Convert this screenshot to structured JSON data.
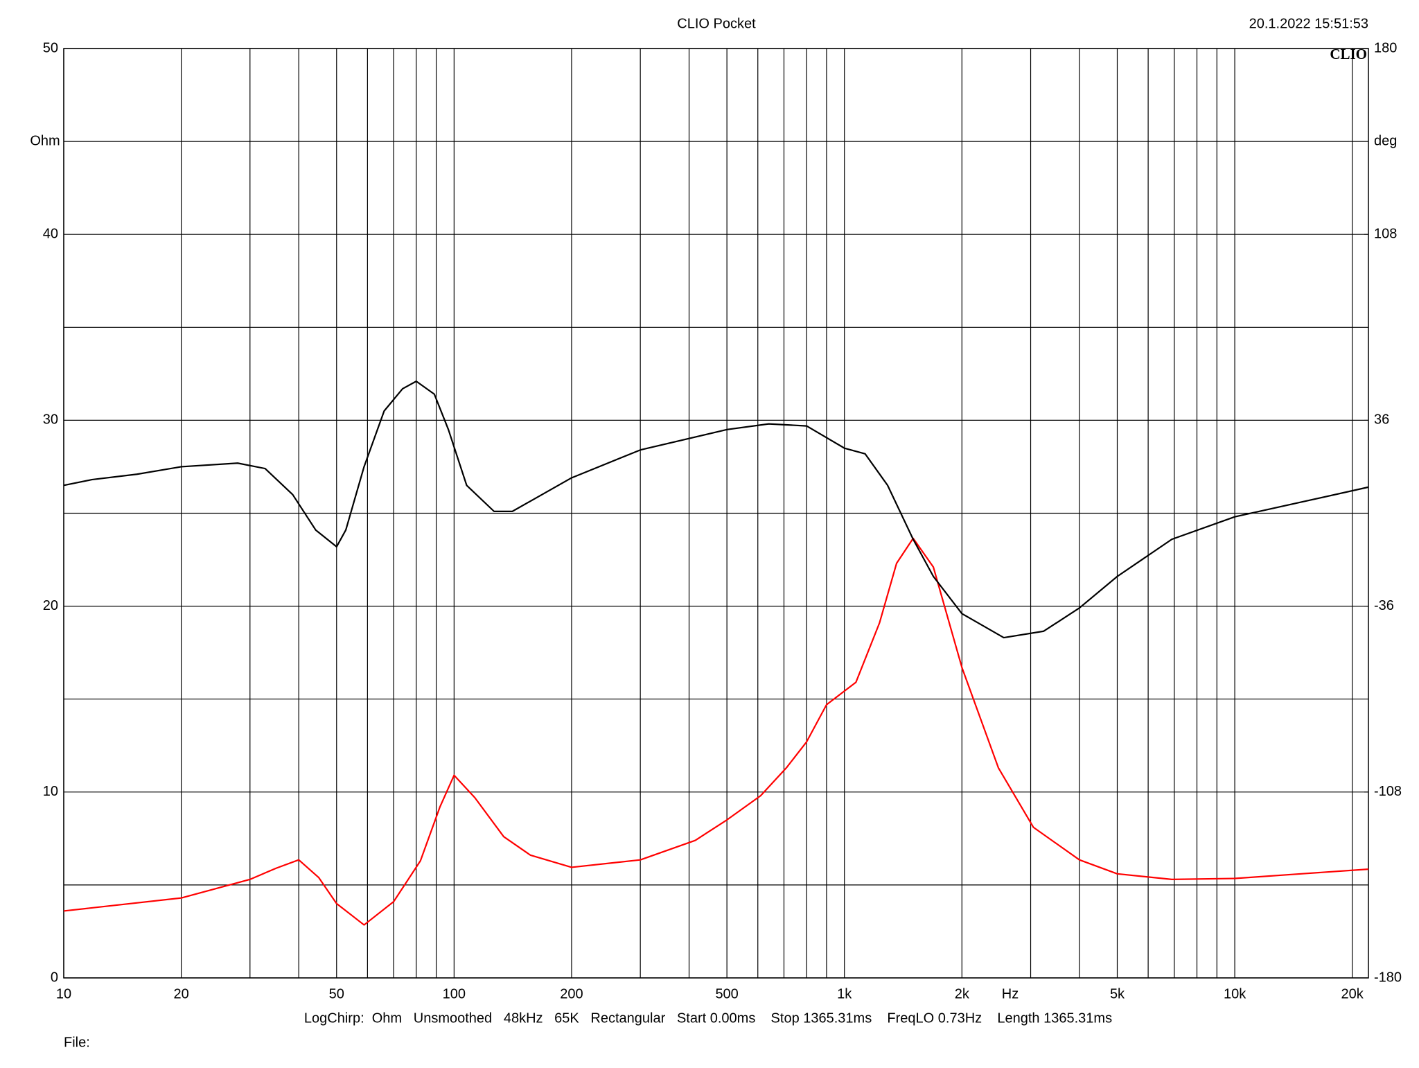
{
  "chart_data": {
    "type": "line",
    "title": "CLIO Pocket",
    "timestamp": "20.1.2022 15:51:53",
    "logo": "CLIO",
    "y_label": "Ohm",
    "y2_label": "deg",
    "x_label": "Hz",
    "footer": "LogChirp:  Ohm   Unsmoothed   48kHz   65K   Rectangular   Start 0.00ms    Stop 1365.31ms    FreqLO 0.73Hz    Length 1365.31ms",
    "file_label": "File:",
    "xscale": "log",
    "xlim": [
      10,
      22000
    ],
    "xticks": [
      10,
      20,
      50,
      100,
      200,
      500,
      {
        "value": 1000,
        "label": "1k"
      },
      {
        "value": 2000,
        "label": "2k"
      },
      {
        "value": 5000,
        "label": "5k"
      },
      {
        "value": 10000,
        "label": "10k"
      },
      {
        "value": 20000,
        "label": "20k"
      }
    ],
    "xgrid_minor": [
      30,
      40,
      60,
      70,
      80,
      90,
      300,
      400,
      600,
      700,
      800,
      900,
      3000,
      4000,
      6000,
      7000,
      8000,
      9000
    ],
    "ylim": [
      0,
      50
    ],
    "yticks": [
      0,
      10,
      20,
      30,
      40,
      50
    ],
    "ygrid_minor": [
      5,
      15,
      25,
      35,
      45
    ],
    "y2lim": [
      -180,
      180
    ],
    "y2ticks": [
      -180,
      -108,
      -36,
      36,
      108,
      180
    ],
    "grid": true,
    "series": [
      {
        "color": "#ff0000",
        "x": [
          10,
          20,
          30,
          35,
          40,
          45,
          50,
          58.8,
          70,
          82,
          92,
          100,
          113,
          134,
          157,
          200,
          300,
          415,
          500,
          610,
          710,
          800,
          900,
          1070,
          1230,
          1360,
          1500,
          1690,
          2000,
          2480,
          3050,
          4000,
          5000,
          6900,
          10000,
          14800,
          22000
        ],
        "values": [
          3.6,
          4.3,
          5.3,
          5.9,
          6.35,
          5.4,
          4.0,
          2.85,
          4.1,
          6.3,
          9.2,
          10.9,
          9.7,
          7.6,
          6.6,
          5.95,
          6.35,
          7.4,
          8.5,
          9.8,
          11.3,
          12.7,
          14.7,
          15.9,
          19.1,
          22.3,
          23.65,
          22.1,
          16.7,
          11.3,
          8.1,
          6.35,
          5.6,
          5.3,
          5.35,
          5.6,
          5.85
        ]
      },
      {
        "color": "#000000",
        "axis": "y2",
        "x": [
          10,
          11.8,
          15.4,
          20,
          27.9,
          32.8,
          38.6,
          44.2,
          50,
          52.8,
          58.8,
          66.2,
          73.8,
          80,
          89,
          96.7,
          107.7,
          126.6,
          141,
          200,
          300,
          500,
          640,
          800,
          1000,
          1130,
          1290,
          1500,
          1690,
          2000,
          2560,
          3240,
          4000,
          5000,
          6900,
          10000,
          14800,
          22000
        ],
        "values": [
          10.8,
          13,
          15.1,
          18,
          19.4,
          17.3,
          7.2,
          -6.5,
          -13,
          -6.5,
          18,
          39.6,
          48.2,
          51.1,
          46.1,
          32.4,
          10.8,
          0.7,
          0.7,
          13.7,
          24.5,
          32.4,
          34.6,
          33.8,
          25.2,
          23,
          10.8,
          -10.1,
          -24.5,
          -38.9,
          -48.2,
          -45.7,
          -36.7,
          -24.5,
          -10.1,
          -1.4,
          4.3,
          10.1
        ]
      }
    ]
  }
}
